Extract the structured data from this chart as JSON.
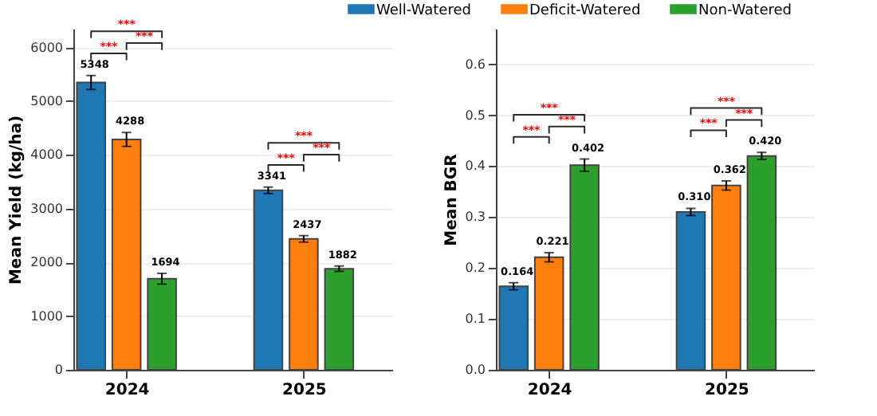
{
  "chart_data": [
    {
      "type": "bar",
      "ylabel": "Mean Yield (kg/ha)",
      "categories": [
        "2024",
        "2025"
      ],
      "series": [
        {
          "name": "Well-Watered",
          "color": "#1f77b4",
          "values": [
            5348,
            3341
          ],
          "errors": [
            130,
            60
          ],
          "value_labels": [
            "5348",
            "3341"
          ]
        },
        {
          "name": "Deficit-Watered",
          "color": "#ff7f0e",
          "values": [
            4288,
            2437
          ],
          "errors": [
            130,
            60
          ],
          "value_labels": [
            "4288",
            "2437"
          ]
        },
        {
          "name": "Non-Watered",
          "color": "#2ca02c",
          "values": [
            1694,
            1882
          ],
          "errors": [
            100,
            50
          ],
          "value_labels": [
            "1694",
            "1882"
          ]
        }
      ],
      "ylim": [
        0,
        6350
      ],
      "yticks": [
        0,
        1000,
        2000,
        3000,
        4000,
        5000,
        6000
      ],
      "grid": "y",
      "legend": "top",
      "annotations": [
        "***",
        "***",
        "***",
        "***",
        "***",
        "***"
      ]
    },
    {
      "type": "bar",
      "ylabel": "Mean BGR",
      "categories": [
        "2024",
        "2025"
      ],
      "series": [
        {
          "name": "Well-Watered",
          "color": "#1f77b4",
          "values": [
            0.164,
            0.31
          ],
          "errors": [
            0.007,
            0.007
          ],
          "value_labels": [
            "0.164",
            "0.310"
          ]
        },
        {
          "name": "Deficit-Watered",
          "color": "#ff7f0e",
          "values": [
            0.221,
            0.362
          ],
          "errors": [
            0.009,
            0.009
          ],
          "value_labels": [
            "0.221",
            "0.362"
          ]
        },
        {
          "name": "Non-Watered",
          "color": "#2ca02c",
          "values": [
            0.402,
            0.42
          ],
          "errors": [
            0.012,
            0.007
          ],
          "value_labels": [
            "0.402",
            "0.420"
          ]
        }
      ],
      "ylim": [
        0,
        0.67
      ],
      "yticks": [
        {
          "value": 0,
          "label": "0.0"
        },
        0.1,
        0.2,
        0.3,
        0.4,
        0.5,
        0.6
      ],
      "grid": "y",
      "legend": "top",
      "annotations": [
        "***",
        "***",
        "***",
        "***",
        "***",
        "***"
      ]
    }
  ]
}
